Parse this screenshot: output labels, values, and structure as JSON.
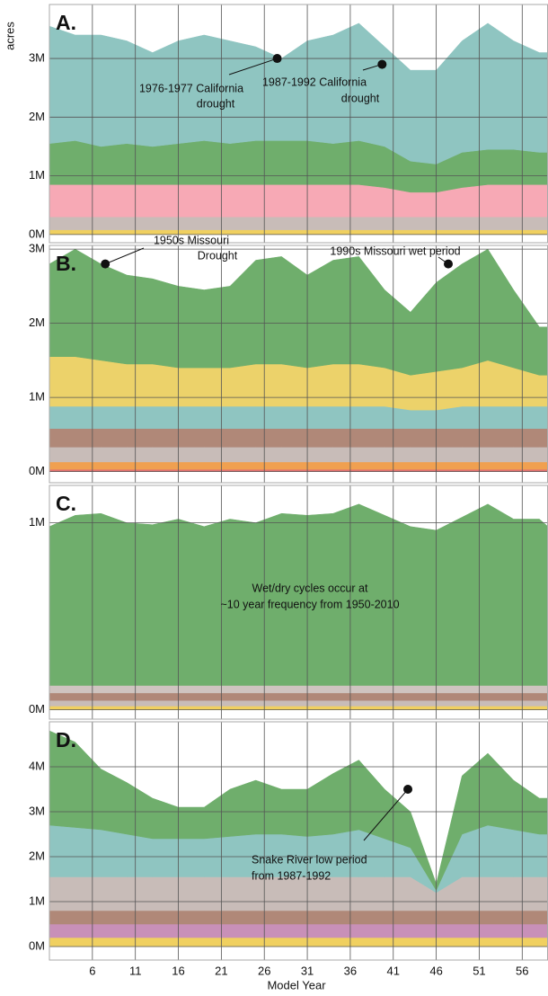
{
  "chart_data": [
    {
      "type": "area",
      "title": "A.",
      "ylabel": "acres",
      "x": [
        1,
        4,
        7,
        10,
        13,
        16,
        19,
        22,
        25,
        28,
        31,
        34,
        37,
        40,
        43,
        46,
        49,
        52,
        55,
        58,
        59
      ],
      "xlim": [
        1,
        59
      ],
      "xticks": [
        6,
        11,
        16,
        21,
        26,
        31,
        36,
        41,
        46,
        51,
        56
      ],
      "ylim": [
        -140000,
        3920000
      ],
      "yticks": [
        {
          "value": 0,
          "label": "0M"
        },
        {
          "value": 1000000,
          "label": "1M"
        },
        {
          "value": 2000000,
          "label": "2M"
        },
        {
          "value": 3000000,
          "label": "3M"
        }
      ],
      "grid": true,
      "series": [
        {
          "color": "#f0d060",
          "values": [
            80000,
            80000,
            80000,
            80000,
            80000,
            80000,
            80000,
            80000,
            80000,
            80000,
            80000,
            80000,
            80000,
            80000,
            80000,
            80000,
            80000,
            80000,
            80000,
            80000,
            80000
          ]
        },
        {
          "color": "#c8bcb8",
          "values": [
            220000,
            220000,
            220000,
            220000,
            220000,
            220000,
            220000,
            220000,
            220000,
            220000,
            220000,
            220000,
            220000,
            220000,
            220000,
            220000,
            220000,
            220000,
            220000,
            220000,
            220000
          ]
        },
        {
          "color": "#f7a9b5",
          "values": [
            550000,
            550000,
            550000,
            550000,
            550000,
            550000,
            550000,
            550000,
            550000,
            550000,
            550000,
            550000,
            550000,
            500000,
            420000,
            420000,
            500000,
            550000,
            550000,
            550000,
            550000
          ]
        },
        {
          "color": "#6fae6c",
          "values": [
            700000,
            750000,
            650000,
            700000,
            650000,
            700000,
            750000,
            700000,
            750000,
            750000,
            750000,
            700000,
            750000,
            700000,
            530000,
            480000,
            600000,
            600000,
            600000,
            550000,
            550000
          ]
        },
        {
          "color": "#8fc5c1",
          "values": [
            2000000,
            1800000,
            1900000,
            1750000,
            1600000,
            1750000,
            1800000,
            1750000,
            1600000,
            1400000,
            1700000,
            1850000,
            2000000,
            1700000,
            1550000,
            1600000,
            1900000,
            2150000,
            1850000,
            1700000,
            1700000
          ]
        }
      ],
      "annotations": [
        {
          "x": 27.5,
          "y": 3000000,
          "text": [
            "1976-1977 California",
            "drought"
          ]
        },
        {
          "x": 39.7,
          "y": 2900000,
          "text": [
            "1987-1992 California",
            "drought"
          ]
        }
      ]
    },
    {
      "type": "area",
      "title": "B.",
      "x": [
        1,
        4,
        7,
        10,
        13,
        16,
        19,
        22,
        25,
        28,
        31,
        34,
        37,
        40,
        43,
        46,
        49,
        52,
        55,
        58,
        59
      ],
      "xlim": [
        1,
        59
      ],
      "xticks": [
        6,
        11,
        16,
        21,
        26,
        31,
        36,
        41,
        46,
        51,
        56
      ],
      "ylim": [
        -150000,
        3050000
      ],
      "yticks": [
        {
          "value": 0,
          "label": "0M"
        },
        {
          "value": 1000000,
          "label": "1M"
        },
        {
          "value": 2000000,
          "label": "2M"
        },
        {
          "value": 3000000,
          "label": "3M"
        }
      ],
      "grid": true,
      "series": [
        {
          "color": "#e07070",
          "values": [
            30000,
            30000,
            30000,
            30000,
            30000,
            30000,
            30000,
            30000,
            30000,
            30000,
            30000,
            30000,
            30000,
            30000,
            30000,
            30000,
            30000,
            30000,
            30000,
            30000,
            30000
          ]
        },
        {
          "color": "#f0a050",
          "values": [
            100000,
            100000,
            100000,
            100000,
            100000,
            100000,
            100000,
            100000,
            100000,
            100000,
            100000,
            100000,
            100000,
            100000,
            100000,
            100000,
            100000,
            100000,
            100000,
            100000,
            100000
          ]
        },
        {
          "color": "#c8bcb8",
          "values": [
            200000,
            200000,
            200000,
            200000,
            200000,
            200000,
            200000,
            200000,
            200000,
            200000,
            200000,
            200000,
            200000,
            200000,
            200000,
            200000,
            200000,
            200000,
            200000,
            200000,
            200000
          ]
        },
        {
          "color": "#b08878",
          "values": [
            250000,
            250000,
            250000,
            250000,
            250000,
            250000,
            250000,
            250000,
            250000,
            250000,
            250000,
            250000,
            250000,
            250000,
            250000,
            250000,
            250000,
            250000,
            250000,
            250000,
            250000
          ]
        },
        {
          "color": "#8fc5c1",
          "values": [
            300000,
            300000,
            300000,
            300000,
            300000,
            300000,
            300000,
            300000,
            300000,
            300000,
            300000,
            300000,
            300000,
            300000,
            250000,
            250000,
            300000,
            300000,
            300000,
            300000,
            300000
          ]
        },
        {
          "color": "#ecd26a",
          "values": [
            670000,
            670000,
            620000,
            570000,
            570000,
            520000,
            520000,
            520000,
            570000,
            570000,
            520000,
            570000,
            570000,
            520000,
            470000,
            520000,
            520000,
            620000,
            520000,
            420000,
            420000
          ]
        },
        {
          "color": "#6fae6c",
          "values": [
            1250000,
            1450000,
            1300000,
            1200000,
            1150000,
            1100000,
            1050000,
            1100000,
            1400000,
            1450000,
            1250000,
            1400000,
            1450000,
            1050000,
            850000,
            1200000,
            1400000,
            1500000,
            1050000,
            650000,
            650000
          ]
        }
      ],
      "annotations": [
        {
          "x": 7.5,
          "y": 2800000,
          "text": [
            "1950s Missouri",
            "Drought"
          ]
        },
        {
          "x": 47.4,
          "y": 2800000,
          "text": [
            "1990s Missouri wet period"
          ]
        }
      ]
    },
    {
      "type": "area",
      "title": "C.",
      "x": [
        1,
        4,
        7,
        10,
        13,
        16,
        19,
        22,
        25,
        28,
        31,
        34,
        37,
        40,
        43,
        46,
        49,
        52,
        55,
        58,
        59
      ],
      "xlim": [
        1,
        59
      ],
      "xticks": [
        6,
        11,
        16,
        21,
        26,
        31,
        36,
        41,
        46,
        51,
        56
      ],
      "ylim": [
        -50000,
        1200000
      ],
      "yticks": [
        {
          "value": 0,
          "label": "0M"
        },
        {
          "value": 1000000,
          "label": "1M"
        }
      ],
      "grid": true,
      "series": [
        {
          "color": "#f0d060",
          "values": [
            20000,
            20000,
            20000,
            20000,
            20000,
            20000,
            20000,
            20000,
            20000,
            20000,
            20000,
            20000,
            20000,
            20000,
            20000,
            20000,
            20000,
            20000,
            20000,
            20000,
            20000
          ]
        },
        {
          "color": "#c8bcb8",
          "values": [
            30000,
            30000,
            30000,
            30000,
            30000,
            30000,
            30000,
            30000,
            30000,
            30000,
            30000,
            30000,
            30000,
            30000,
            30000,
            30000,
            30000,
            30000,
            30000,
            30000,
            30000
          ]
        },
        {
          "color": "#b08878",
          "values": [
            40000,
            40000,
            40000,
            40000,
            40000,
            40000,
            40000,
            40000,
            40000,
            40000,
            40000,
            40000,
            40000,
            40000,
            40000,
            40000,
            40000,
            40000,
            40000,
            40000,
            40000
          ]
        },
        {
          "color": "#cfc4c0",
          "values": [
            40000,
            40000,
            40000,
            40000,
            40000,
            40000,
            40000,
            40000,
            40000,
            40000,
            40000,
            40000,
            40000,
            40000,
            40000,
            40000,
            40000,
            40000,
            40000,
            40000,
            40000
          ]
        },
        {
          "color": "#6fae6c",
          "values": [
            850000,
            910000,
            920000,
            870000,
            860000,
            890000,
            850000,
            890000,
            870000,
            920000,
            910000,
            920000,
            970000,
            910000,
            850000,
            830000,
            900000,
            970000,
            890000,
            890000,
            850000
          ]
        }
      ],
      "note": [
        "Wet/dry cycles occur at",
        "~10 year frequency from 1950-2010"
      ]
    },
    {
      "type": "area",
      "title": "D.",
      "xlabel": "Model Year",
      "x": [
        1,
        4,
        7,
        10,
        13,
        16,
        19,
        22,
        25,
        28,
        31,
        34,
        37,
        40,
        43,
        46,
        49,
        52,
        55,
        58,
        59
      ],
      "xlim": [
        1,
        59
      ],
      "xticks": [
        6,
        11,
        16,
        21,
        26,
        31,
        36,
        41,
        46,
        51,
        56
      ],
      "ylim": [
        -300000,
        5000000
      ],
      "yticks": [
        {
          "value": 0,
          "label": "0M"
        },
        {
          "value": 1000000,
          "label": "1M"
        },
        {
          "value": 2000000,
          "label": "2M"
        },
        {
          "value": 3000000,
          "label": "3M"
        },
        {
          "value": 4000000,
          "label": "4M"
        }
      ],
      "grid": true,
      "series": [
        {
          "color": "#f0d060",
          "values": [
            200000,
            200000,
            200000,
            200000,
            200000,
            200000,
            200000,
            200000,
            200000,
            200000,
            200000,
            200000,
            200000,
            200000,
            200000,
            200000,
            200000,
            200000,
            200000,
            200000,
            200000
          ]
        },
        {
          "color": "#c890b8",
          "values": [
            300000,
            300000,
            300000,
            300000,
            300000,
            300000,
            300000,
            300000,
            300000,
            300000,
            300000,
            300000,
            300000,
            300000,
            300000,
            300000,
            300000,
            300000,
            300000,
            300000,
            300000
          ]
        },
        {
          "color": "#b08878",
          "values": [
            300000,
            300000,
            300000,
            300000,
            300000,
            300000,
            300000,
            300000,
            300000,
            300000,
            300000,
            300000,
            300000,
            300000,
            300000,
            300000,
            300000,
            300000,
            300000,
            300000,
            300000
          ]
        },
        {
          "color": "#c8bcb8",
          "values": [
            750000,
            750000,
            750000,
            750000,
            750000,
            750000,
            750000,
            750000,
            750000,
            750000,
            750000,
            750000,
            750000,
            750000,
            750000,
            400000,
            750000,
            750000,
            750000,
            750000,
            750000
          ]
        },
        {
          "color": "#8fc5c1",
          "values": [
            1150000,
            1100000,
            1050000,
            950000,
            850000,
            850000,
            850000,
            900000,
            950000,
            950000,
            900000,
            950000,
            1050000,
            850000,
            650000,
            50000,
            950000,
            1150000,
            1050000,
            950000,
            950000
          ]
        },
        {
          "color": "#6fae6c",
          "values": [
            2100000,
            1900000,
            1350000,
            1150000,
            900000,
            700000,
            700000,
            1050000,
            1200000,
            1000000,
            1050000,
            1350000,
            1550000,
            1100000,
            800000,
            150000,
            1300000,
            1600000,
            1100000,
            800000,
            800000
          ]
        }
      ],
      "annotations": [
        {
          "x": 42.7,
          "y": 3500000,
          "text": [
            "Snake River low period",
            "from 1987-1992"
          ]
        }
      ]
    }
  ]
}
